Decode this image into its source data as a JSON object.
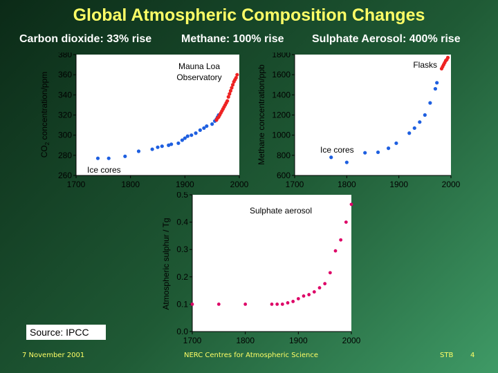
{
  "slide": {
    "title": "Global Atmospheric Composition Changes",
    "subtitles": [
      "Carbon dioxide: 33% rise",
      "Methane: 100% rise",
      "Sulphate Aerosol: 400% rise"
    ],
    "source": "Source: IPCC",
    "footer_date": "7 November 2001",
    "footer_org": "NERC Centres for Atmospheric Science",
    "footer_author": "STB",
    "footer_page": "4"
  },
  "colors": {
    "ice_core": "#1e5fe0",
    "modern": "#ee2222",
    "sulphate": "#dd0066"
  },
  "chart_data": [
    {
      "type": "scatter",
      "ylabel_main": "CO",
      "ylabel_sub": "2",
      "ylabel_rest": " concentration/ppm",
      "xlim": [
        1700,
        2000
      ],
      "ylim": [
        260,
        380
      ],
      "xticks": [
        "1700",
        "1800",
        "1900",
        "2000"
      ],
      "yticks": [
        "260",
        "280",
        "300",
        "320",
        "340",
        "360",
        "380"
      ],
      "annotations": [
        "Mauna Loa",
        "Observatory",
        "Ice cores"
      ],
      "series": [
        {
          "color": "#1e5fe0",
          "x": [
            1740,
            1760,
            1790,
            1815,
            1840,
            1850,
            1858,
            1870,
            1875,
            1888,
            1895,
            1900,
            1905,
            1912,
            1920,
            1928,
            1935,
            1940,
            1950,
            1955,
            1958,
            1960,
            1962
          ],
          "y": [
            277,
            277,
            279,
            284,
            286,
            288,
            289,
            290,
            291,
            292,
            295,
            297,
            299,
            300,
            302,
            305,
            307,
            309,
            311,
            314,
            316,
            318,
            320
          ]
        },
        {
          "color": "#ee2222",
          "x": [
            1958,
            1960,
            1962,
            1964,
            1966,
            1968,
            1970,
            1972,
            1974,
            1976,
            1978,
            1980,
            1982,
            1984,
            1986,
            1988,
            1990,
            1992,
            1994,
            1996
          ],
          "y": [
            315,
            317,
            318,
            320,
            322,
            324,
            326,
            328,
            330,
            332,
            334,
            338,
            341,
            344,
            347,
            350,
            353,
            355,
            357,
            360
          ]
        }
      ]
    },
    {
      "type": "scatter",
      "ylabel": "Methane concentration/ppb",
      "xlim": [
        1700,
        2000
      ],
      "ylim": [
        600,
        1800
      ],
      "xticks": [
        "1700",
        "1800",
        "1900",
        "2000"
      ],
      "yticks": [
        "600",
        "800",
        "1000",
        "1200",
        "1400",
        "1600",
        "1800"
      ],
      "annotations": [
        "Flasks",
        "Ice cores"
      ],
      "series": [
        {
          "color": "#1e5fe0",
          "x": [
            1770,
            1800,
            1835,
            1860,
            1880,
            1895,
            1920,
            1930,
            1940,
            1950,
            1960,
            1970,
            1973
          ],
          "y": [
            780,
            730,
            825,
            830,
            870,
            920,
            1020,
            1070,
            1130,
            1200,
            1320,
            1460,
            1520
          ]
        },
        {
          "color": "#ee2222",
          "x": [
            1982,
            1984,
            1986,
            1988,
            1990,
            1992,
            1994
          ],
          "y": [
            1660,
            1680,
            1700,
            1720,
            1740,
            1750,
            1770
          ]
        }
      ]
    },
    {
      "type": "scatter",
      "ylabel": "Atmospheric sulphur / Tg",
      "xlim": [
        1700,
        2000
      ],
      "ylim": [
        0.0,
        0.5
      ],
      "xticks": [
        "1700",
        "1800",
        "1900",
        "2000"
      ],
      "yticks": [
        "0.0",
        "0.1",
        "0.2",
        "0.3",
        "0.4",
        "0.5"
      ],
      "annotations": [
        "Sulphate aerosol"
      ],
      "series": [
        {
          "color": "#dd0066",
          "x": [
            1700,
            1750,
            1800,
            1850,
            1860,
            1870,
            1880,
            1890,
            1900,
            1910,
            1920,
            1930,
            1940,
            1950,
            1960,
            1970,
            1980,
            1990,
            2000
          ],
          "y": [
            0.1,
            0.1,
            0.1,
            0.1,
            0.1,
            0.1,
            0.105,
            0.11,
            0.12,
            0.13,
            0.135,
            0.145,
            0.16,
            0.175,
            0.215,
            0.295,
            0.335,
            0.4,
            0.465
          ]
        }
      ]
    }
  ]
}
